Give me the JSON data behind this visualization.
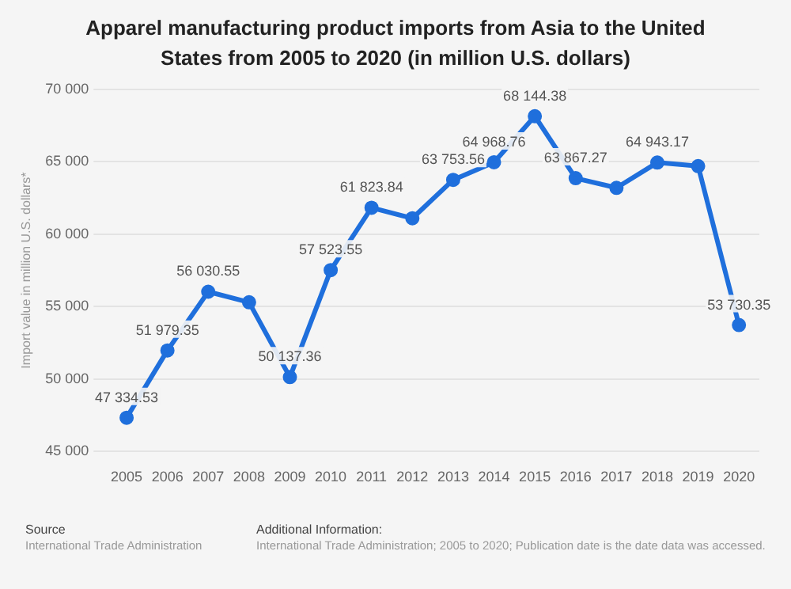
{
  "chart_data": {
    "type": "line",
    "title": "Apparel manufacturing product imports from Asia to the United States from 2005 to 2020 (in million U.S. dollars)",
    "ylabel": "Import value in million U.S. dollars*",
    "categories": [
      "2005",
      "2006",
      "2007",
      "2008",
      "2009",
      "2010",
      "2011",
      "2012",
      "2013",
      "2014",
      "2015",
      "2016",
      "2017",
      "2018",
      "2019",
      "2020"
    ],
    "series": [
      {
        "color": "#1f6fdc",
        "values": [
          47334.53,
          51979.35,
          56030.55,
          55300,
          50137.36,
          57523.55,
          61823.84,
          61100,
          63753.56,
          64968.76,
          68144.38,
          63867.27,
          63200,
          64943.17,
          64700,
          53730.35
        ],
        "value_labels": [
          "47 334.53",
          "51 979.35",
          "56 030.55",
          null,
          "50 137.36",
          "57 523.55",
          "61 823.84",
          null,
          "63 753.56",
          "64 968.76",
          "68 144.38",
          "63 867.27",
          null,
          "64 943.17",
          null,
          "53 730.35"
        ]
      }
    ],
    "ylim": [
      45000,
      70000
    ],
    "yticks": [
      {
        "value": 45000,
        "label": "45 000"
      },
      {
        "value": 50000,
        "label": "50 000"
      },
      {
        "value": 55000,
        "label": "55 000"
      },
      {
        "value": 60000,
        "label": "60 000"
      },
      {
        "value": 65000,
        "label": "65 000"
      },
      {
        "value": 70000,
        "label": "70 000"
      }
    ],
    "grid": "y",
    "marker": "circle",
    "line_style": "solid",
    "annotations": [
      "Source",
      "International Trade Administration",
      "Additional Information:",
      "International Trade Administration; 2005 to 2020; Publication date is the date data was accessed."
    ]
  }
}
